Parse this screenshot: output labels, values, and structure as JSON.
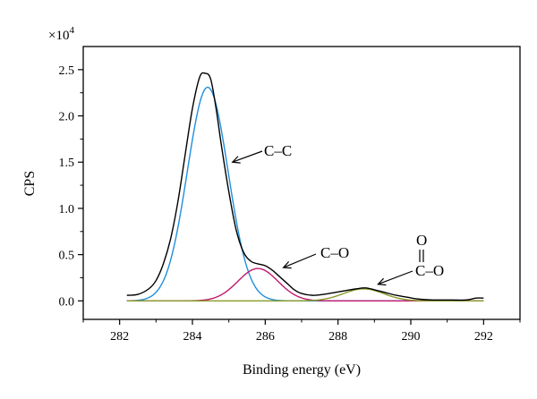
{
  "chart_data": {
    "type": "line",
    "title": "",
    "xlabel": "Binding energy (eV)",
    "ylabel": "CPS",
    "y_multiplier_label": "×10",
    "y_multiplier_exponent": "4",
    "xlim": [
      281,
      293
    ],
    "ylim": [
      -0.2,
      2.75
    ],
    "x_ticks": [
      282,
      284,
      286,
      288,
      290,
      292
    ],
    "x_tick_labels": [
      "282",
      "284",
      "286",
      "288",
      "290",
      "292"
    ],
    "y_ticks": [
      0,
      0.5,
      1,
      1.5,
      2,
      2.5
    ],
    "y_tick_labels": [
      "0.0",
      "0.5",
      "1.0",
      "1.5",
      "2.0",
      "2.5"
    ],
    "grid": false,
    "legend": "none",
    "series": [
      {
        "color": "#000000",
        "x": [
          282.2,
          282.5,
          282.8,
          283.0,
          283.2,
          283.4,
          283.6,
          283.8,
          284.0,
          284.2,
          284.35,
          284.5,
          284.65,
          284.8,
          285.0,
          285.2,
          285.4,
          285.6,
          285.8,
          286.0,
          286.2,
          286.4,
          286.6,
          286.8,
          287.0,
          287.3,
          287.6,
          287.9,
          288.2,
          288.5,
          288.75,
          289.0,
          289.3,
          289.6,
          289.9,
          290.2,
          290.6,
          291.0,
          291.5,
          291.8,
          292.0
        ],
        "y": [
          0.06,
          0.07,
          0.13,
          0.22,
          0.4,
          0.67,
          1.07,
          1.58,
          2.08,
          2.42,
          2.46,
          2.4,
          2.08,
          1.67,
          1.18,
          0.77,
          0.53,
          0.43,
          0.4,
          0.38,
          0.33,
          0.26,
          0.19,
          0.12,
          0.08,
          0.06,
          0.07,
          0.09,
          0.11,
          0.13,
          0.14,
          0.12,
          0.09,
          0.06,
          0.04,
          0.02,
          0.01,
          0.01,
          0.01,
          0.03,
          0.03
        ]
      },
      {
        "name": "C–C",
        "color": "#1f8fdc",
        "center": 284.42,
        "height": 2.31,
        "sigma": 0.56
      },
      {
        "name": "C–O",
        "color": "#c0186e",
        "center": 285.8,
        "height": 0.35,
        "sigma": 0.55
      },
      {
        "name": "C–O (O above)",
        "color": "#8a9a28",
        "center": 288.7,
        "height": 0.13,
        "sigma": 0.55
      }
    ],
    "annotations": [
      {
        "text": "C–C",
        "arrow_to": [
          285.1,
          1.5
        ]
      },
      {
        "text": "C–O",
        "arrow_to": [
          286.5,
          0.36
        ]
      },
      {
        "text": "C–O",
        "top_text": "O",
        "arrow_to": [
          289.1,
          0.18
        ]
      }
    ]
  }
}
